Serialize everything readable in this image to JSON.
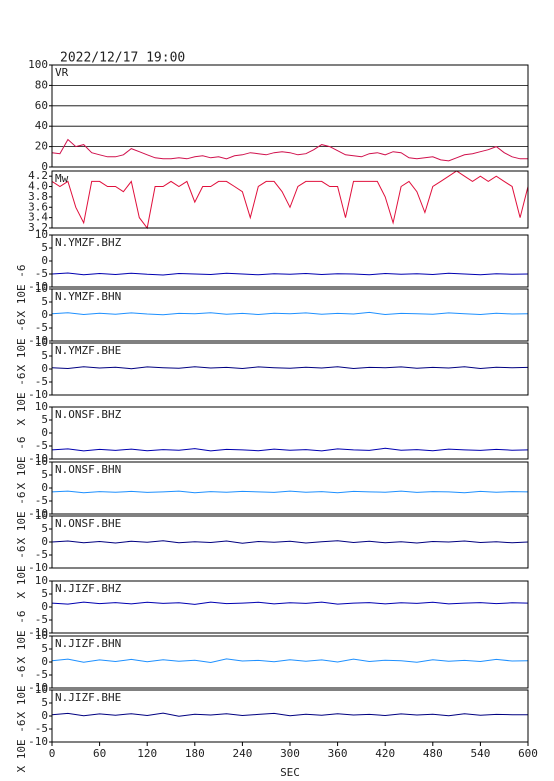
{
  "title": "2022/12/17 19:00",
  "chart_data": [
    {
      "type": "line",
      "title": "VR",
      "color": "#d0104c",
      "grid": true,
      "x": [
        0,
        10,
        20,
        30,
        40,
        50,
        60,
        70,
        80,
        90,
        100,
        110,
        120,
        130,
        140,
        150,
        160,
        170,
        180,
        190,
        200,
        210,
        220,
        230,
        240,
        250,
        260,
        270,
        280,
        290,
        300,
        310,
        320,
        330,
        340,
        350,
        360,
        370,
        380,
        390,
        400,
        410,
        420,
        430,
        440,
        450,
        460,
        470,
        480,
        490,
        500,
        510,
        520,
        530,
        540,
        550,
        560,
        570,
        580,
        590,
        600
      ],
      "values": [
        14,
        13,
        27,
        20,
        22,
        14,
        12,
        10,
        10,
        12,
        18,
        15,
        12,
        9,
        8,
        8,
        9,
        8,
        10,
        11,
        9,
        10,
        8,
        11,
        12,
        14,
        13,
        12,
        14,
        15,
        14,
        12,
        13,
        17,
        22,
        20,
        16,
        12,
        11,
        10,
        13,
        14,
        12,
        15,
        14,
        9,
        8,
        9,
        10,
        7,
        6,
        9,
        12,
        13,
        15,
        17,
        20,
        14,
        10,
        8,
        8
      ],
      "xlim": [
        0,
        600
      ],
      "ylim": [
        0,
        100
      ],
      "yticks": [
        0,
        20,
        40,
        60,
        80,
        100
      ]
    },
    {
      "type": "line",
      "title": "Mw",
      "color": "#e0103c",
      "grid": false,
      "x": [
        0,
        10,
        20,
        30,
        40,
        50,
        60,
        70,
        80,
        90,
        100,
        110,
        120,
        130,
        140,
        150,
        160,
        170,
        180,
        190,
        200,
        210,
        220,
        230,
        240,
        250,
        260,
        270,
        280,
        290,
        300,
        310,
        320,
        330,
        340,
        350,
        360,
        370,
        380,
        390,
        400,
        410,
        420,
        430,
        440,
        450,
        460,
        470,
        480,
        490,
        500,
        510,
        520,
        530,
        540,
        550,
        560,
        570,
        580,
        590,
        600
      ],
      "values": [
        4.1,
        4.0,
        4.1,
        3.6,
        3.3,
        4.1,
        4.1,
        4.0,
        4.0,
        3.9,
        4.1,
        3.4,
        3.2,
        4.0,
        4.0,
        4.1,
        4.0,
        4.1,
        3.7,
        4.0,
        4.0,
        4.1,
        4.1,
        4.0,
        3.9,
        3.4,
        4.0,
        4.1,
        4.1,
        3.9,
        3.6,
        4.0,
        4.1,
        4.1,
        4.1,
        4.0,
        4.0,
        3.4,
        4.1,
        4.1,
        4.1,
        4.1,
        3.8,
        3.3,
        4.0,
        4.1,
        3.9,
        3.5,
        4.0,
        4.1,
        4.2,
        4.3,
        4.2,
        4.1,
        4.2,
        4.1,
        4.2,
        4.1,
        4.0,
        3.4,
        4.0
      ],
      "xlim": [
        0,
        600
      ],
      "ylim": [
        3.2,
        4.3
      ],
      "yticks": [
        {
          "value": 3.2,
          "label": "3.2"
        },
        {
          "value": 3.4,
          "label": "3.4"
        },
        {
          "value": 3.6,
          "label": "3.6"
        },
        {
          "value": 3.8,
          "label": "3.8"
        },
        {
          "value": 4.0,
          "label": "4.0"
        },
        {
          "value": 4.2,
          "label": "4.2"
        }
      ]
    },
    {
      "type": "line",
      "title": "N.YMZF.BHZ",
      "ylabel": "X 10E -6",
      "color": "#0000b0",
      "x": [
        0,
        20,
        40,
        60,
        80,
        100,
        120,
        140,
        160,
        180,
        200,
        220,
        240,
        260,
        280,
        300,
        320,
        340,
        360,
        380,
        400,
        420,
        440,
        460,
        480,
        500,
        520,
        540,
        560,
        580,
        600
      ],
      "values": [
        -5,
        -4.6,
        -5.3,
        -4.8,
        -5.2,
        -4.7,
        -5.1,
        -5.4,
        -4.8,
        -5,
        -5.2,
        -4.7,
        -5,
        -5.3,
        -4.9,
        -5.1,
        -4.8,
        -5.2,
        -4.9,
        -5,
        -5.3,
        -4.8,
        -5.1,
        -4.9,
        -5.2,
        -4.7,
        -5,
        -5.3,
        -4.9,
        -5.1,
        -5
      ],
      "xlim": [
        0,
        600
      ],
      "ylim": [
        -10,
        10
      ],
      "yticks": [
        -10,
        -5,
        0,
        5,
        10
      ]
    },
    {
      "type": "line",
      "title": "N.YMZF.BHN",
      "ylabel": "X 10E -6",
      "color": "#1e90ff",
      "x": [
        0,
        20,
        40,
        60,
        80,
        100,
        120,
        140,
        160,
        180,
        200,
        220,
        240,
        260,
        280,
        300,
        320,
        340,
        360,
        380,
        400,
        420,
        440,
        460,
        480,
        500,
        520,
        540,
        560,
        580,
        600
      ],
      "values": [
        0.5,
        0.9,
        0.2,
        0.7,
        0.3,
        0.8,
        0.4,
        0.1,
        0.6,
        0.5,
        0.9,
        0.3,
        0.6,
        0.2,
        0.7,
        0.5,
        0.8,
        0.3,
        0.6,
        0.4,
        1.0,
        0.2,
        0.6,
        0.5,
        0.3,
        0.8,
        0.5,
        0.2,
        0.7,
        0.4,
        0.5
      ],
      "xlim": [
        0,
        600
      ],
      "ylim": [
        -10,
        10
      ],
      "yticks": [
        -10,
        -5,
        0,
        5,
        10
      ]
    },
    {
      "type": "line",
      "title": "N.YMZF.BHE",
      "ylabel": "X 10E -6",
      "color": "#000080",
      "x": [
        0,
        20,
        40,
        60,
        80,
        100,
        120,
        140,
        160,
        180,
        200,
        220,
        240,
        260,
        280,
        300,
        320,
        340,
        360,
        380,
        400,
        420,
        440,
        460,
        480,
        500,
        520,
        540,
        560,
        580,
        600
      ],
      "values": [
        0.5,
        0.2,
        0.9,
        0.4,
        0.7,
        0.1,
        0.8,
        0.5,
        0.3,
        0.9,
        0.4,
        0.6,
        0.2,
        0.8,
        0.5,
        0.3,
        0.7,
        0.4,
        0.9,
        0.2,
        0.6,
        0.5,
        0.8,
        0.3,
        0.6,
        0.4,
        0.9,
        0.2,
        0.7,
        0.5,
        0.6
      ],
      "xlim": [
        0,
        600
      ],
      "ylim": [
        -10,
        10
      ],
      "yticks": [
        -10,
        -5,
        0,
        5,
        10
      ]
    },
    {
      "type": "line",
      "title": "N.ONSF.BHZ",
      "ylabel": "X 10E -6",
      "color": "#0000b0",
      "x": [
        0,
        20,
        40,
        60,
        80,
        100,
        120,
        140,
        160,
        180,
        200,
        220,
        240,
        260,
        280,
        300,
        320,
        340,
        360,
        380,
        400,
        420,
        440,
        460,
        480,
        500,
        520,
        540,
        560,
        580,
        600
      ],
      "values": [
        -6.5,
        -6.1,
        -6.9,
        -6.3,
        -6.7,
        -6.2,
        -6.8,
        -6.4,
        -6.6,
        -6,
        -6.9,
        -6.3,
        -6.5,
        -6.8,
        -6.2,
        -6.6,
        -6.4,
        -6.9,
        -6.1,
        -6.5,
        -6.7,
        -5.9,
        -6.6,
        -6.4,
        -6.8,
        -6.2,
        -6.5,
        -6.7,
        -6.3,
        -6.6,
        -6.5
      ],
      "xlim": [
        0,
        600
      ],
      "ylim": [
        -10,
        10
      ],
      "yticks": [
        -10,
        -5,
        0,
        5,
        10
      ]
    },
    {
      "type": "line",
      "title": "N.ONSF.BHN",
      "ylabel": "X 10E -6",
      "color": "#1e90ff",
      "x": [
        0,
        20,
        40,
        60,
        80,
        100,
        120,
        140,
        160,
        180,
        200,
        220,
        240,
        260,
        280,
        300,
        320,
        340,
        360,
        380,
        400,
        420,
        440,
        460,
        480,
        500,
        520,
        540,
        560,
        580,
        600
      ],
      "values": [
        -1.5,
        -1.2,
        -1.8,
        -1.4,
        -1.6,
        -1.3,
        -1.7,
        -1.5,
        -1.2,
        -1.8,
        -1.4,
        -1.6,
        -1.3,
        -1.5,
        -1.7,
        -1.2,
        -1.6,
        -1.4,
        -1.8,
        -1.3,
        -1.5,
        -1.6,
        -1.2,
        -1.7,
        -1.4,
        -1.5,
        -1.8,
        -1.3,
        -1.6,
        -1.4,
        -1.5
      ],
      "xlim": [
        0,
        600
      ],
      "ylim": [
        -10,
        10
      ],
      "yticks": [
        -10,
        -5,
        0,
        5,
        10
      ]
    },
    {
      "type": "line",
      "title": "N.ONSF.BHE",
      "ylabel": "X 10E -6",
      "color": "#000080",
      "x": [
        0,
        20,
        40,
        60,
        80,
        100,
        120,
        140,
        160,
        180,
        200,
        220,
        240,
        260,
        280,
        300,
        320,
        340,
        360,
        380,
        400,
        420,
        440,
        460,
        480,
        500,
        520,
        540,
        560,
        580,
        600
      ],
      "values": [
        0,
        0.4,
        -0.3,
        0.2,
        -0.4,
        0.3,
        -0.1,
        0.5,
        -0.3,
        0.1,
        -0.2,
        0.4,
        -0.5,
        0.2,
        -0.1,
        0.3,
        -0.4,
        0.1,
        0.5,
        -0.2,
        0.3,
        -0.3,
        0.1,
        -0.4,
        0.2,
        0,
        0.4,
        -0.2,
        0.1,
        -0.3,
        0
      ],
      "xlim": [
        0,
        600
      ],
      "ylim": [
        -10,
        10
      ],
      "yticks": [
        -10,
        -5,
        0,
        5,
        10
      ]
    },
    {
      "type": "line",
      "title": "N.JIZF.BHZ",
      "ylabel": "X 10E -6",
      "color": "#0000b0",
      "x": [
        0,
        20,
        40,
        60,
        80,
        100,
        120,
        140,
        160,
        180,
        200,
        220,
        240,
        260,
        280,
        300,
        320,
        340,
        360,
        380,
        400,
        420,
        440,
        460,
        480,
        500,
        520,
        540,
        560,
        580,
        600
      ],
      "values": [
        1.5,
        1.1,
        1.9,
        1.3,
        1.7,
        1.2,
        1.8,
        1.4,
        1.6,
        1,
        1.9,
        1.3,
        1.5,
        1.8,
        1.2,
        1.6,
        1.4,
        1.9,
        1.1,
        1.5,
        1.7,
        1.2,
        1.6,
        1.4,
        1.8,
        1.2,
        1.5,
        1.7,
        1.3,
        1.6,
        1.5
      ],
      "xlim": [
        0,
        600
      ],
      "ylim": [
        -10,
        10
      ],
      "yticks": [
        -10,
        -5,
        0,
        5,
        10
      ]
    },
    {
      "type": "line",
      "title": "N.JIZF.BHN",
      "ylabel": "X 10E -6",
      "color": "#1e90ff",
      "x": [
        0,
        20,
        40,
        60,
        80,
        100,
        120,
        140,
        160,
        180,
        200,
        220,
        240,
        260,
        280,
        300,
        320,
        340,
        360,
        380,
        400,
        420,
        440,
        460,
        480,
        500,
        520,
        540,
        560,
        580,
        600
      ],
      "values": [
        0.5,
        1.1,
        -0.1,
        0.8,
        0.2,
        1.0,
        0.1,
        0.9,
        0.3,
        0.7,
        -0.2,
        1.2,
        0.4,
        0.6,
        0.1,
        0.9,
        0.3,
        0.8,
        0,
        1.1,
        0.2,
        0.7,
        0.5,
        -0.1,
        0.9,
        0.3,
        0.6,
        0.2,
        1.0,
        0.4,
        0.5
      ],
      "xlim": [
        0,
        600
      ],
      "ylim": [
        -10,
        10
      ],
      "yticks": [
        -10,
        -5,
        0,
        5,
        10
      ]
    },
    {
      "type": "line",
      "title": "N.JIZF.BHE",
      "ylabel": "X 10E -6",
      "color": "#000080",
      "x": [
        0,
        20,
        40,
        60,
        80,
        100,
        120,
        140,
        160,
        180,
        200,
        220,
        240,
        260,
        280,
        300,
        320,
        340,
        360,
        380,
        400,
        420,
        440,
        460,
        480,
        500,
        520,
        540,
        560,
        580,
        600
      ],
      "values": [
        0.5,
        1.0,
        0.1,
        0.8,
        0.3,
        0.9,
        0.2,
        1.1,
        -0.1,
        0.7,
        0.4,
        0.9,
        0.2,
        0.6,
        1.0,
        0.1,
        0.7,
        0.3,
        0.9,
        0.4,
        0.6,
        0.2,
        0.8,
        0.4,
        0.7,
        0.1,
        0.9,
        0.3,
        0.6,
        0.5,
        0.5
      ],
      "xlim": [
        0,
        600
      ],
      "ylim": [
        -10,
        10
      ],
      "yticks": [
        -10,
        -5,
        0,
        5,
        10
      ],
      "xlabel": "SEC",
      "xticks": [
        0,
        60,
        120,
        180,
        240,
        300,
        360,
        420,
        480,
        540,
        600
      ]
    }
  ]
}
